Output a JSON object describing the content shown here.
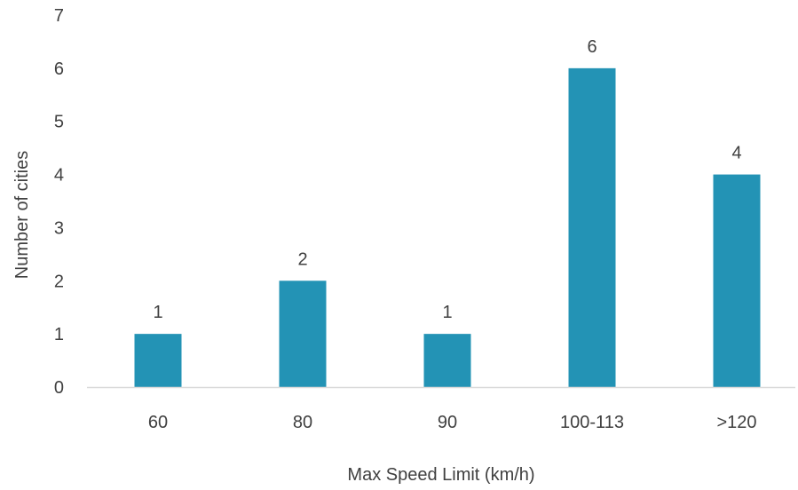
{
  "chart_data": {
    "type": "bar",
    "title": "",
    "xlabel": "Max Speed Limit (km/h)",
    "ylabel": "Number of cities",
    "categories": [
      "60",
      "80",
      "90",
      "100-113",
      ">120"
    ],
    "values": [
      1,
      2,
      1,
      6,
      4
    ],
    "data_labels": [
      "1",
      "2",
      "1",
      "6",
      "4"
    ],
    "ylim": [
      0,
      7
    ],
    "yticks": [
      "0",
      "1",
      "2",
      "3",
      "4",
      "5",
      "6",
      "7"
    ],
    "grid": false,
    "legend": "none",
    "bar_color": "#2393b5",
    "axis_color": "#d9d9d9",
    "text_color": "#404040"
  }
}
